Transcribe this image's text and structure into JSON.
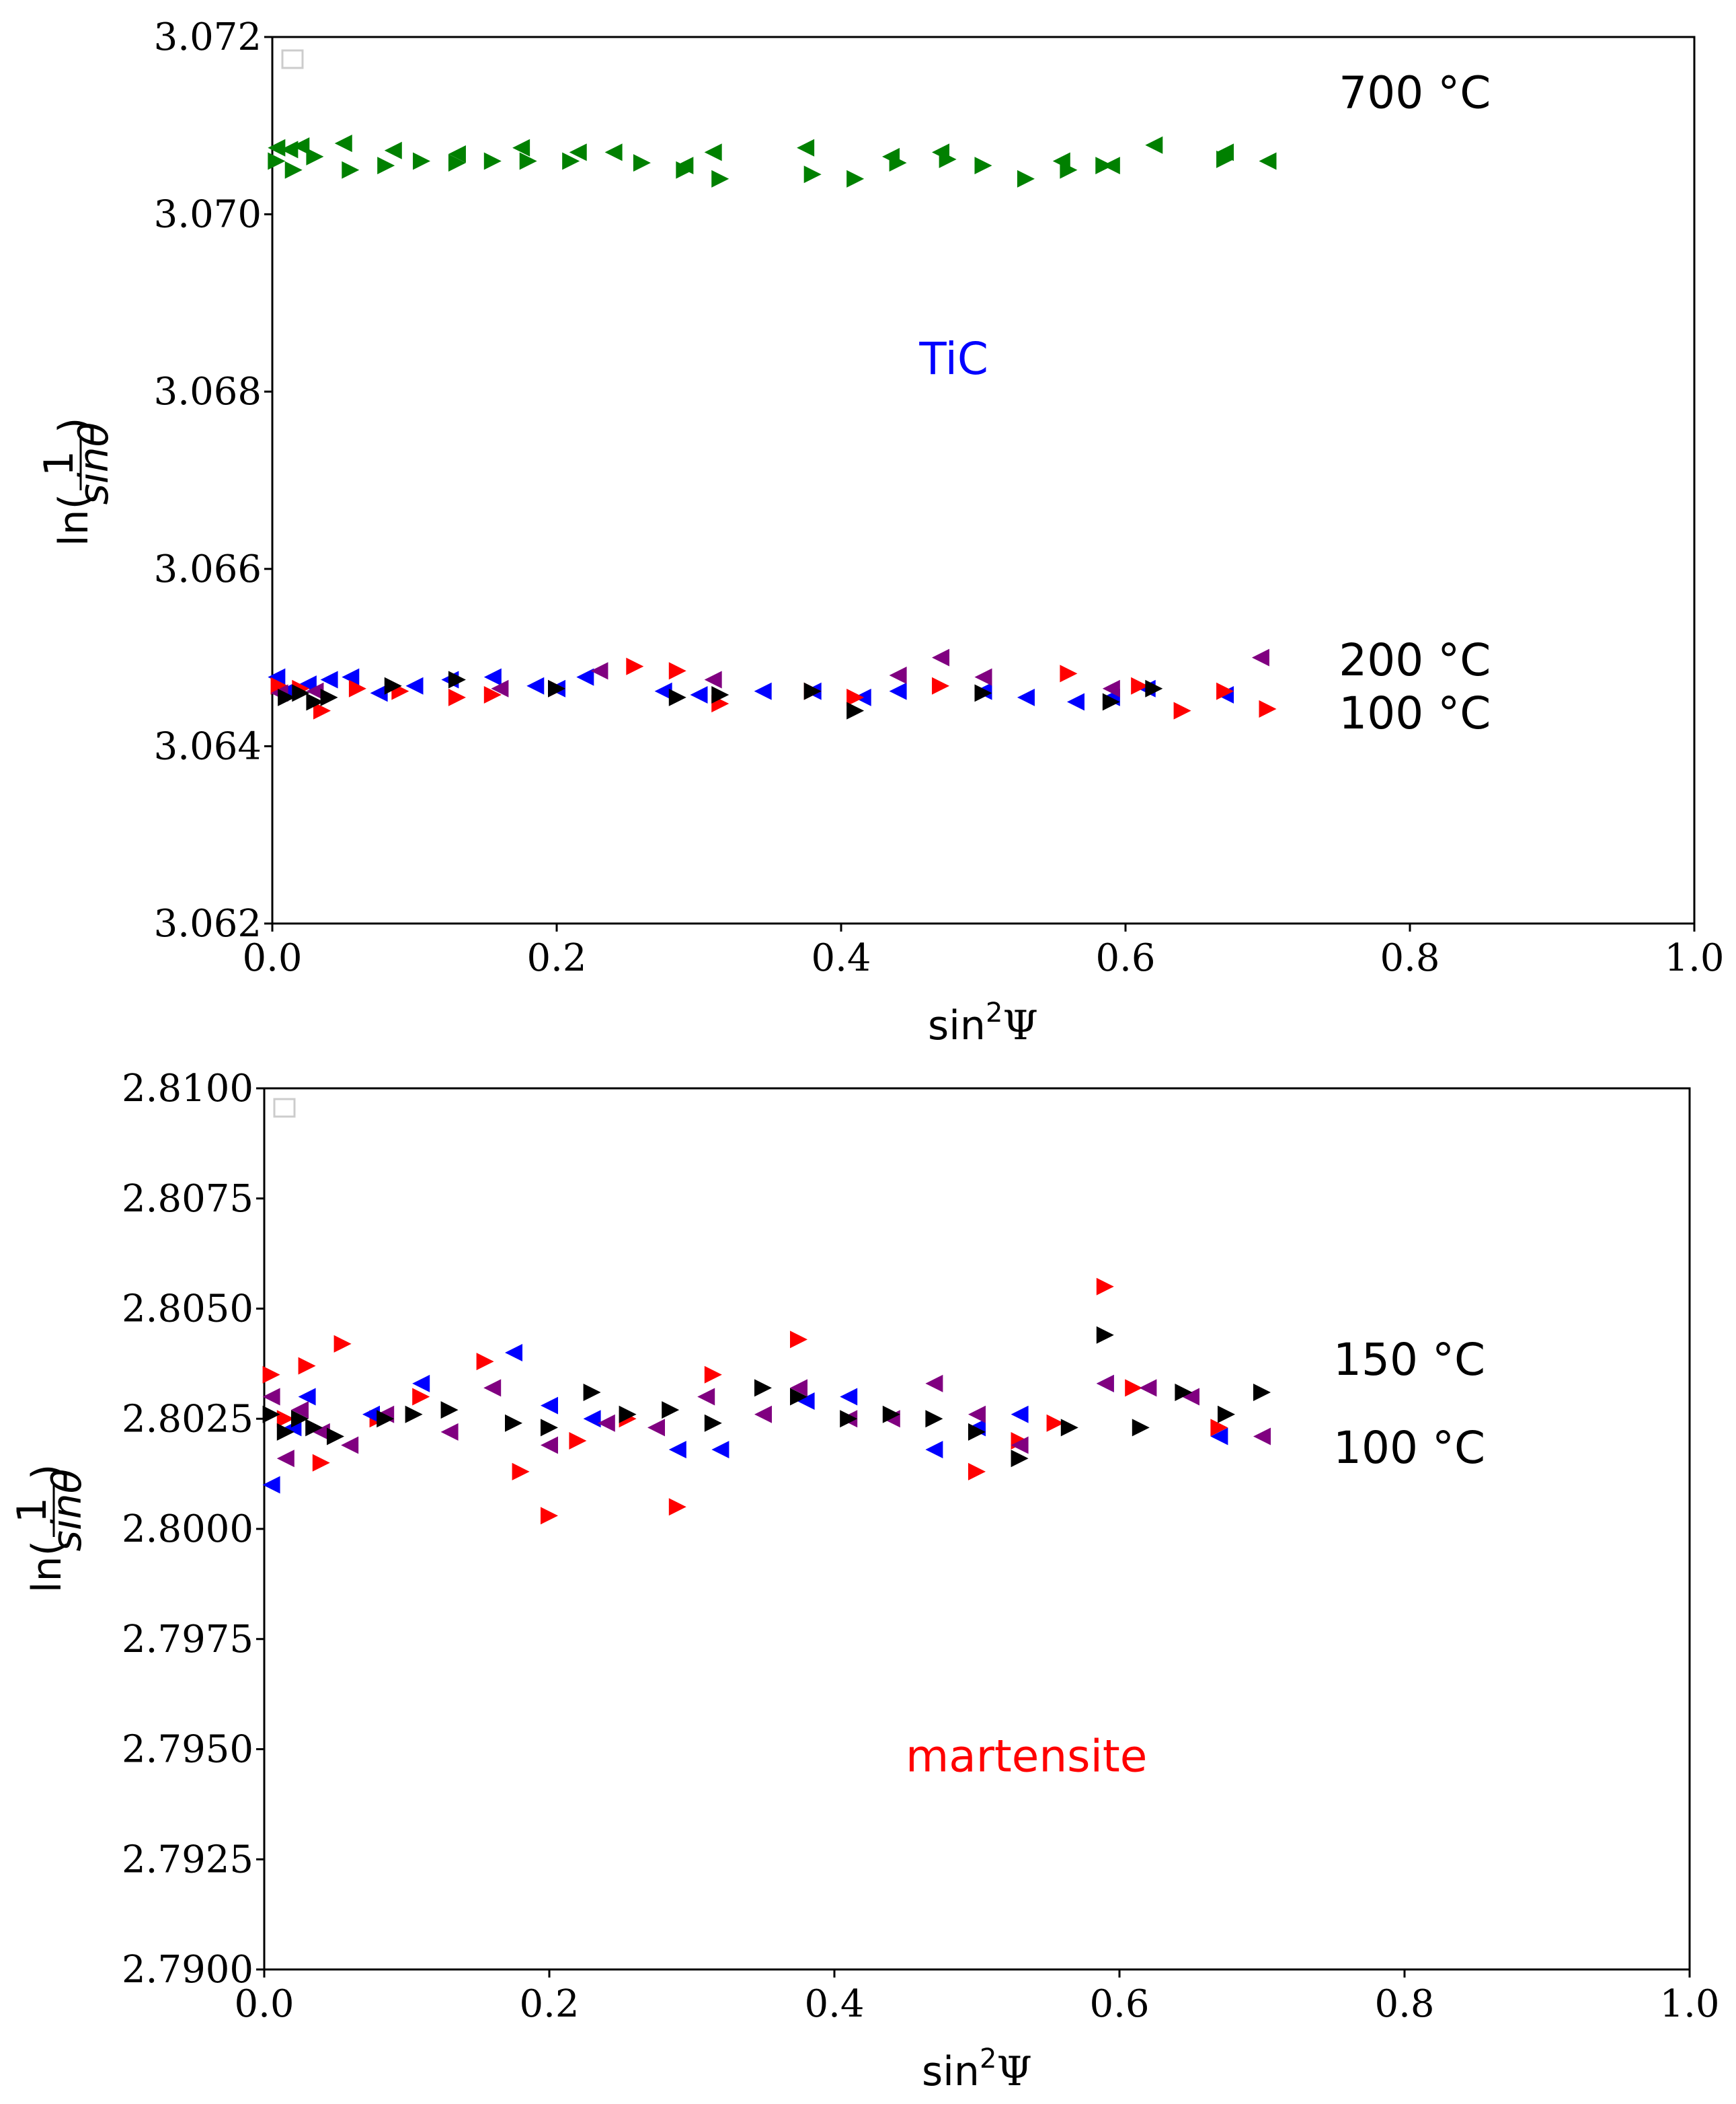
{
  "chart_data": [
    {
      "type": "scatter",
      "title": "",
      "xlabel": "sin",
      "xlabel_sup": "2",
      "xlabel_tail": "Ψ",
      "ylabel": "ln(1/sinθ)",
      "ylabel_prefix": "ln(",
      "ylabel_num": "1",
      "ylabel_den": "sinθ",
      "ylabel_suffix": ")",
      "xlim": [
        0.0,
        1.0
      ],
      "ylim": [
        3.062,
        3.072
      ],
      "xticks": [
        0.0,
        0.2,
        0.4,
        0.6,
        0.8,
        1.0
      ],
      "xtick_labels": [
        "0.0",
        "0.2",
        "0.4",
        "0.6",
        "0.8",
        "1.0"
      ],
      "yticks": [
        3.062,
        3.064,
        3.066,
        3.068,
        3.07,
        3.072
      ],
      "ytick_labels": [
        "3.062",
        "3.064",
        "3.066",
        "3.068",
        "3.070",
        "3.072"
      ],
      "grid": false,
      "legend": "empty (top-left)",
      "annotations": [
        {
          "text": "700 °C",
          "x": 0.75,
          "y": 3.0712,
          "color": "#000000"
        },
        {
          "text": "TiC",
          "x": 0.455,
          "y": 3.0682,
          "color": "#0000ff"
        },
        {
          "text": "200 °C",
          "x": 0.75,
          "y": 3.0648,
          "color": "#000000"
        },
        {
          "text": "100 °C",
          "x": 0.75,
          "y": 3.0642,
          "color": "#000000"
        }
      ],
      "series": [
        {
          "name": "700 °C green-left",
          "color": "#008000",
          "marker": "left",
          "x": [
            0.003,
            0.012,
            0.02,
            0.05,
            0.085,
            0.13,
            0.175,
            0.215,
            0.24,
            0.29,
            0.31,
            0.375,
            0.435,
            0.47,
            0.555,
            0.59,
            0.62,
            0.67,
            0.7
          ],
          "y": [
            3.07075,
            3.07073,
            3.07077,
            3.0708,
            3.07072,
            3.07068,
            3.07075,
            3.0707,
            3.0707,
            3.07055,
            3.0707,
            3.07075,
            3.07065,
            3.0707,
            3.0706,
            3.07055,
            3.07078,
            3.0707,
            3.0706
          ]
        },
        {
          "name": "700 °C green-right",
          "color": "#008000",
          "marker": "right",
          "x": [
            0.003,
            0.015,
            0.03,
            0.055,
            0.08,
            0.105,
            0.13,
            0.155,
            0.18,
            0.21,
            0.26,
            0.29,
            0.315,
            0.38,
            0.41,
            0.44,
            0.475,
            0.5,
            0.53,
            0.56,
            0.585,
            0.67
          ],
          "y": [
            3.0706,
            3.0705,
            3.07065,
            3.0705,
            3.07055,
            3.0706,
            3.07058,
            3.0706,
            3.0706,
            3.0706,
            3.07058,
            3.0705,
            3.0704,
            3.07045,
            3.0704,
            3.07058,
            3.07062,
            3.07055,
            3.0704,
            3.0705,
            3.07055,
            3.07062
          ]
        },
        {
          "name": "TiC blue",
          "color": "#0000ff",
          "marker": "left",
          "x": [
            0.003,
            0.01,
            0.025,
            0.04,
            0.055,
            0.075,
            0.1,
            0.125,
            0.155,
            0.185,
            0.2,
            0.22,
            0.275,
            0.3,
            0.345,
            0.38,
            0.415,
            0.44,
            0.5,
            0.53,
            0.565,
            0.59,
            0.615,
            0.67
          ],
          "y": [
            3.06478,
            3.06462,
            3.0647,
            3.06475,
            3.06478,
            3.0646,
            3.06468,
            3.06475,
            3.06478,
            3.06468,
            3.06465,
            3.06478,
            3.06462,
            3.06458,
            3.06462,
            3.06462,
            3.06455,
            3.06462,
            3.06462,
            3.06455,
            3.0645,
            3.06455,
            3.06465,
            3.06458
          ]
        },
        {
          "name": "TiC red",
          "color": "#ff0000",
          "marker": "right",
          "x": [
            0.005,
            0.02,
            0.035,
            0.06,
            0.09,
            0.13,
            0.155,
            0.2,
            0.255,
            0.285,
            0.315,
            0.38,
            0.41,
            0.47,
            0.56,
            0.61,
            0.64,
            0.67,
            0.7
          ],
          "y": [
            3.06468,
            3.06465,
            3.0644,
            3.06465,
            3.06462,
            3.06455,
            3.06458,
            3.06465,
            3.0649,
            3.06485,
            3.06448,
            3.06462,
            3.06455,
            3.06468,
            3.06482,
            3.06468,
            3.0644,
            3.06462,
            3.06442
          ]
        },
        {
          "name": "TiC purple",
          "color": "#800080",
          "marker": "left",
          "x": [
            0.005,
            0.03,
            0.16,
            0.23,
            0.31,
            0.44,
            0.47,
            0.5,
            0.59,
            0.695
          ],
          "y": [
            3.0646,
            3.06462,
            3.06465,
            3.06485,
            3.06475,
            3.0648,
            3.065,
            3.06478,
            3.06465,
            3.065
          ]
        },
        {
          "name": "TiC black",
          "color": "#000000",
          "marker": "right",
          "x": [
            0.01,
            0.02,
            0.03,
            0.04,
            0.085,
            0.13,
            0.2,
            0.285,
            0.315,
            0.38,
            0.41,
            0.5,
            0.59,
            0.62
          ],
          "y": [
            3.06455,
            3.0646,
            3.0645,
            3.06455,
            3.06468,
            3.06475,
            3.06465,
            3.06455,
            3.06458,
            3.06462,
            3.0644,
            3.0646,
            3.0645,
            3.06465
          ]
        }
      ]
    },
    {
      "type": "scatter",
      "title": "",
      "xlabel": "sin",
      "xlabel_sup": "2",
      "xlabel_tail": "Ψ",
      "ylabel": "ln(1/sinθ)",
      "ylabel_prefix": "ln(",
      "ylabel_num": "1",
      "ylabel_den": "sinθ",
      "ylabel_suffix": ")",
      "xlim": [
        0.0,
        1.0
      ],
      "ylim": [
        2.79,
        2.81
      ],
      "xticks": [
        0.0,
        0.2,
        0.4,
        0.6,
        0.8,
        1.0
      ],
      "xtick_labels": [
        "0.0",
        "0.2",
        "0.4",
        "0.6",
        "0.8",
        "1.0"
      ],
      "yticks": [
        2.79,
        2.7925,
        2.795,
        2.7975,
        2.8,
        2.8025,
        2.805,
        2.8075,
        2.81
      ],
      "ytick_labels": [
        "2.7900",
        "2.7925",
        "2.7950",
        "2.7975",
        "2.8000",
        "2.8025",
        "2.8050",
        "2.8075",
        "2.8100"
      ],
      "grid": false,
      "legend": "empty (top-left)",
      "annotations": [
        {
          "text": "150 °C",
          "x": 0.75,
          "y": 2.8035,
          "color": "#000000"
        },
        {
          "text": "100 °C",
          "x": 0.75,
          "y": 2.8015,
          "color": "#000000"
        },
        {
          "text": "martensite",
          "x": 0.45,
          "y": 2.7945,
          "color": "#ff0000"
        }
      ],
      "series": [
        {
          "name": "martensite red",
          "color": "#ff0000",
          "marker": "right",
          "x": [
            0.005,
            0.015,
            0.03,
            0.04,
            0.055,
            0.08,
            0.11,
            0.155,
            0.18,
            0.2,
            0.22,
            0.255,
            0.29,
            0.315,
            0.375,
            0.5,
            0.53,
            0.555,
            0.59,
            0.61,
            0.67
          ],
          "y": [
            2.8035,
            2.8025,
            2.8037,
            2.8015,
            2.8042,
            2.8025,
            2.803,
            2.8038,
            2.8013,
            2.8003,
            2.802,
            2.8025,
            2.8005,
            2.8035,
            2.8043,
            2.8013,
            2.802,
            2.8024,
            2.8055,
            2.8032,
            2.8023
          ]
        },
        {
          "name": "martensite blue",
          "color": "#0000ff",
          "marker": "left",
          "x": [
            0.005,
            0.02,
            0.03,
            0.075,
            0.11,
            0.175,
            0.2,
            0.23,
            0.29,
            0.32,
            0.38,
            0.41,
            0.47,
            0.5,
            0.53,
            0.59,
            0.67
          ],
          "y": [
            2.801,
            2.8023,
            2.803,
            2.8026,
            2.8033,
            2.804,
            2.8028,
            2.8025,
            2.8018,
            2.8018,
            2.8029,
            2.803,
            2.8018,
            2.8023,
            2.8026,
            2.8033,
            2.8021
          ]
        },
        {
          "name": "martensite purple",
          "color": "#800080",
          "marker": "left",
          "x": [
            0.005,
            0.015,
            0.025,
            0.04,
            0.06,
            0.085,
            0.13,
            0.16,
            0.2,
            0.24,
            0.275,
            0.31,
            0.35,
            0.375,
            0.41,
            0.44,
            0.47,
            0.5,
            0.53,
            0.59,
            0.62,
            0.65,
            0.7
          ],
          "y": [
            2.803,
            2.8016,
            2.8027,
            2.8022,
            2.8019,
            2.8026,
            2.8022,
            2.8032,
            2.8019,
            2.8024,
            2.8023,
            2.803,
            2.8026,
            2.8032,
            2.8025,
            2.8025,
            2.8033,
            2.8026,
            2.8019,
            2.8033,
            2.8032,
            2.803,
            2.8021
          ]
        },
        {
          "name": "martensite black",
          "color": "#000000",
          "marker": "right",
          "x": [
            0.005,
            0.015,
            0.025,
            0.035,
            0.05,
            0.085,
            0.105,
            0.13,
            0.175,
            0.2,
            0.23,
            0.255,
            0.285,
            0.315,
            0.35,
            0.375,
            0.41,
            0.44,
            0.47,
            0.5,
            0.53,
            0.565,
            0.59,
            0.615,
            0.645,
            0.675,
            0.7
          ],
          "y": [
            2.8026,
            2.8022,
            2.8025,
            2.8023,
            2.8021,
            2.8025,
            2.8026,
            2.8027,
            2.8024,
            2.8023,
            2.8031,
            2.8026,
            2.8027,
            2.8024,
            2.8032,
            2.803,
            2.8025,
            2.8026,
            2.8025,
            2.8022,
            2.8016,
            2.8023,
            2.8044,
            2.8023,
            2.8031,
            2.8026,
            2.8031
          ]
        }
      ]
    }
  ]
}
